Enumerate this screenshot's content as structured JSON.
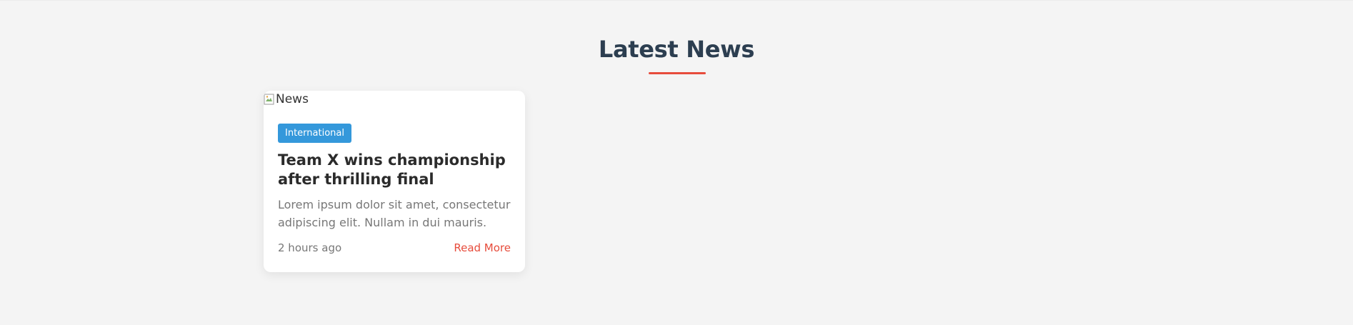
{
  "section": {
    "title": "Latest News"
  },
  "colors": {
    "accent": "#e74c3c",
    "badge": "#3498db",
    "title": "#2c3e50"
  },
  "card": {
    "image_alt": "News",
    "category": "International",
    "headline": "Team X wins championship after thrilling final",
    "excerpt": "Lorem ipsum dolor sit amet, consectetur adipiscing elit. Nullam in dui mauris.",
    "timestamp": "2 hours ago",
    "read_more": "Read More"
  }
}
